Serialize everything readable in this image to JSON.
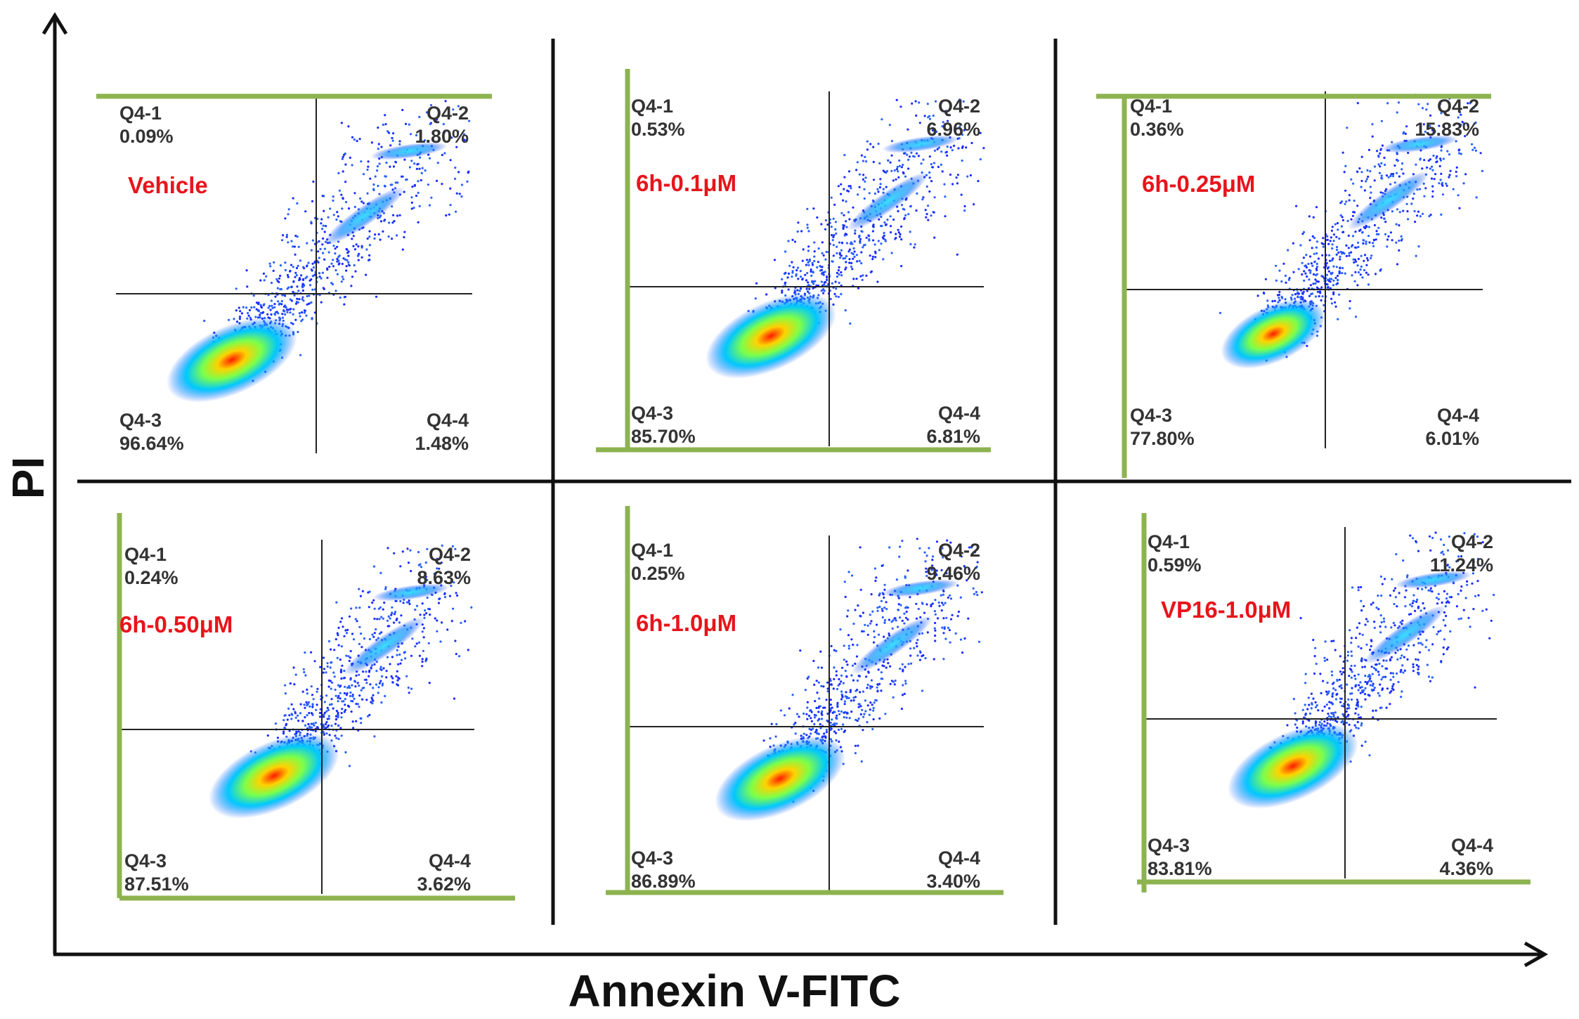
{
  "colors": {
    "axis": "#111111",
    "panel_border": "#8db350",
    "gate": "#222222",
    "condition_label": "#e8141b",
    "quadrant_text": "#333333"
  },
  "chart_data": {
    "type": "scatter",
    "title": "",
    "xlabel": "Annexin V-FITC",
    "ylabel": "PI",
    "panels": [
      {
        "condition": "Vehicle",
        "quadrants": [
          {
            "name": "Q4-1",
            "value": "0.09%"
          },
          {
            "name": "Q4-2",
            "value": "1.80%"
          },
          {
            "name": "Q4-3",
            "value": "96.64%"
          },
          {
            "name": "Q4-4",
            "value": "1.48%"
          }
        ]
      },
      {
        "condition": "6h-0.1μM",
        "quadrants": [
          {
            "name": "Q4-1",
            "value": "0.53%"
          },
          {
            "name": "Q4-2",
            "value": "6.96%"
          },
          {
            "name": "Q4-3",
            "value": "85.70%"
          },
          {
            "name": "Q4-4",
            "value": "6.81%"
          }
        ]
      },
      {
        "condition": "6h-0.25μM",
        "quadrants": [
          {
            "name": "Q4-1",
            "value": "0.36%"
          },
          {
            "name": "Q4-2",
            "value": "15.83%"
          },
          {
            "name": "Q4-3",
            "value": "77.80%"
          },
          {
            "name": "Q4-4",
            "value": "6.01%"
          }
        ]
      },
      {
        "condition": "6h-0.50μM",
        "quadrants": [
          {
            "name": "Q4-1",
            "value": "0.24%"
          },
          {
            "name": "Q4-2",
            "value": "8.63%"
          },
          {
            "name": "Q4-3",
            "value": "87.51%"
          },
          {
            "name": "Q4-4",
            "value": "3.62%"
          }
        ]
      },
      {
        "condition": "6h-1.0μM",
        "quadrants": [
          {
            "name": "Q4-1",
            "value": "0.25%"
          },
          {
            "name": "Q4-2",
            "value": "9.46%"
          },
          {
            "name": "Q4-3",
            "value": "86.89%"
          },
          {
            "name": "Q4-4",
            "value": "3.40%"
          }
        ]
      },
      {
        "condition": "VP16-1.0μM",
        "quadrants": [
          {
            "name": "Q4-1",
            "value": "0.59%"
          },
          {
            "name": "Q4-2",
            "value": "11.24%"
          },
          {
            "name": "Q4-3",
            "value": "83.81%"
          },
          {
            "name": "Q4-4",
            "value": "4.36%"
          }
        ]
      }
    ]
  }
}
